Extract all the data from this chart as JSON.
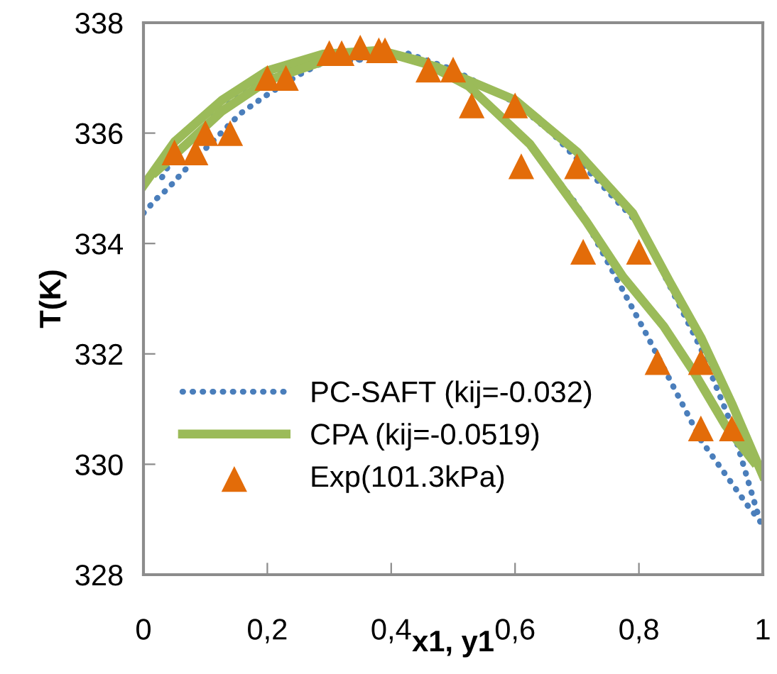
{
  "chart_data": {
    "type": "line",
    "xlabel": "x1, y1",
    "ylabel": "T(K)",
    "xlim": [
      0,
      1
    ],
    "xticks": [
      0,
      {
        "value": 0.2,
        "label": "0,2"
      },
      {
        "value": 0.4,
        "label": "0,4"
      },
      {
        "value": 0.6,
        "label": "0,6"
      },
      {
        "value": 0.8,
        "label": "0,8"
      },
      1
    ],
    "ylim": [
      328,
      338
    ],
    "yticks": [
      328,
      330,
      332,
      334,
      336,
      338
    ],
    "grid": false,
    "legend": "bottom left",
    "series": [
      {
        "name": "PC-SAFT (kij=-0.032)",
        "color": "#4a7ebb",
        "line_style": "dotted",
        "x": [
          0,
          0.02,
          0.04,
          0.06,
          0.095,
          0.156,
          0.195,
          0.25,
          0.285,
          0.425,
          0.5,
          0.6,
          0.66,
          0.8,
          0.9,
          0.95,
          0.977,
          1.0
        ],
        "values": [
          334.55,
          334.8,
          335.0,
          335.25,
          335.66,
          336.35,
          336.66,
          337.05,
          337.25,
          337.45,
          337.15,
          336.55,
          336.0,
          334.35,
          332.1,
          330.7,
          329.67,
          328.8
        ]
      },
      {
        "color": "#4a7ebb",
        "line_style": "dotted",
        "x": [
          0.03,
          0.05,
          0.127,
          0.2,
          0.265,
          0.425,
          0.53,
          0.62,
          0.7,
          0.81,
          0.9,
          0.977,
          0.99
        ],
        "values": [
          335.2,
          335.6,
          336.45,
          337.0,
          337.25,
          337.4,
          336.8,
          335.85,
          334.7,
          332.4,
          330.44,
          329.23,
          329.05
        ]
      },
      {
        "name": "CPA (kij=-0.0519)",
        "color": "#9bbb59",
        "line_style": "solid",
        "x": [
          0,
          0.05,
          0.127,
          0.2,
          0.29,
          0.38,
          0.473,
          0.6,
          0.7,
          0.79,
          0.85,
          0.9,
          0.95,
          1.0
        ],
        "values": [
          335.05,
          335.84,
          336.6,
          337.13,
          337.43,
          337.5,
          337.2,
          336.6,
          335.66,
          334.55,
          333.3,
          332.3,
          331.1,
          329.8
        ]
      },
      {
        "color": "#9bbb59",
        "line_style": "solid",
        "x": [
          0.02,
          0.05,
          0.127,
          0.2,
          0.29,
          0.38,
          0.45,
          0.525,
          0.624,
          0.715,
          0.774,
          0.84,
          0.887,
          0.94,
          0.985
        ],
        "values": [
          335.3,
          335.6,
          336.4,
          336.95,
          337.3,
          337.5,
          337.3,
          336.85,
          335.8,
          334.4,
          333.4,
          332.5,
          331.7,
          330.7,
          330.05
        ]
      },
      {
        "name": "Exp(101.3kPa)",
        "color": "#e36c09",
        "type": "scatter",
        "marker": "triangle",
        "x": [
          0.05,
          0.084,
          0.1,
          0.14,
          0.2,
          0.23,
          0.3,
          0.32,
          0.35,
          0.38,
          0.39,
          0.46,
          0.5,
          0.53,
          0.6,
          0.61,
          0.7,
          0.71,
          0.8,
          0.83,
          0.9,
          0.9,
          0.95
        ],
        "values": [
          335.65,
          335.65,
          336.0,
          336.0,
          337.0,
          337.0,
          337.45,
          337.45,
          337.55,
          337.5,
          337.5,
          337.15,
          337.15,
          336.5,
          336.5,
          335.4,
          335.4,
          333.85,
          333.85,
          331.85,
          331.85,
          330.65,
          330.65
        ]
      }
    ]
  }
}
